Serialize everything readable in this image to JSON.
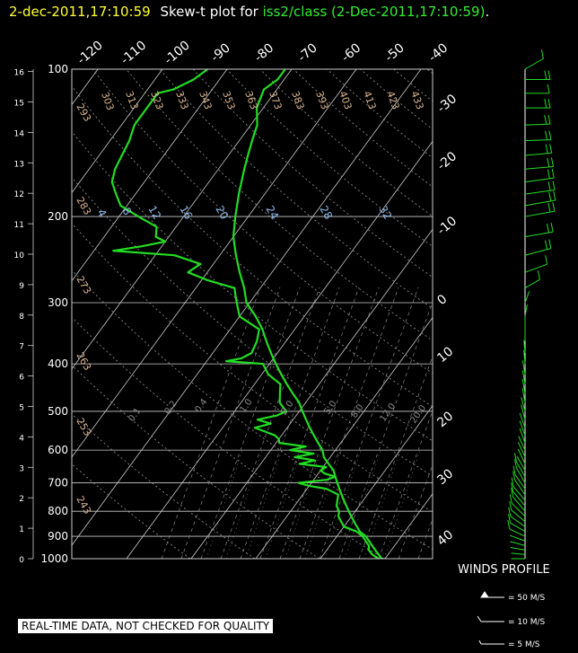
{
  "title": {
    "datetime": "2-dec-2011,17:10:59",
    "mid": "Skew-t plot for",
    "platform": "iss2/class",
    "paren": "(2-Dec-2011,17:10:59)",
    "period": ".",
    "colors": {
      "datetime": "#ffff33",
      "mid": "#ffffff",
      "platform": "#33ee33",
      "paren": "#33ee33"
    }
  },
  "notice": "REAL-TIME DATA, NOT CHECKED FOR QUALITY",
  "wind_profile": {
    "title": "WINDS PROFILE",
    "legend": [
      "= 50 M/S",
      "= 10 M/S",
      "= 5 M/S"
    ]
  },
  "colors": {
    "background": "#000000",
    "trace": "#22dd22",
    "grid": "#cccccc",
    "dry_adiabat_labels": "#d9b38c",
    "mixing_ratio_labels": "#8fb8e8",
    "axis_text": "#ffffff"
  },
  "chart_data": {
    "type": "line",
    "chart_kind": "skew-t log-p",
    "pressure_axis": {
      "label_values": [
        "100",
        "200",
        "300",
        "400",
        "500",
        "600",
        "700",
        "800",
        "900",
        "1000"
      ],
      "pressures": [
        100,
        200,
        300,
        400,
        500,
        600,
        700,
        800,
        900,
        1000
      ]
    },
    "height_axis": {
      "label_values": [
        "16",
        "15",
        "14",
        "13",
        "12",
        "11",
        "10",
        "9",
        "8",
        "7",
        "6",
        "5",
        "4",
        "3",
        "2",
        "1",
        "0"
      ],
      "heights_km": [
        16,
        15,
        14,
        13,
        12,
        11,
        10,
        9,
        8,
        7,
        6,
        5,
        4,
        3,
        2,
        1,
        0
      ]
    },
    "temperature_ticks_top": [
      "-120",
      "-110",
      "-100",
      "-90",
      "-80",
      "-70",
      "-60",
      "-50",
      "-40"
    ],
    "temperature_ticks_right": [
      "-30",
      "-20",
      "-10",
      "0",
      "10",
      "20",
      "30",
      "40"
    ],
    "dry_adiabats": [
      "303",
      "313",
      "323",
      "333",
      "343",
      "353",
      "363",
      "373",
      "383",
      "393",
      "403",
      "413",
      "423",
      "433",
      "293",
      "283",
      "273",
      "263",
      "253",
      "243"
    ],
    "mixing_ratios": [
      "4",
      "8",
      "12",
      "16",
      "20",
      "24",
      "28",
      "32"
    ],
    "moist_adiabat_labels": [
      "0.1",
      "0.2",
      "0.4",
      "1.0",
      "2.0",
      "5.0",
      "8.0",
      "12.0",
      "20.0"
    ],
    "series": [
      {
        "name": "temperature",
        "points": [
          [
            1000,
            -0.5
          ],
          [
            970,
            -2
          ],
          [
            950,
            -3
          ],
          [
            920,
            -4.5
          ],
          [
            900,
            -5.5
          ],
          [
            880,
            -7
          ],
          [
            850,
            -8.5
          ],
          [
            820,
            -10
          ],
          [
            800,
            -11
          ],
          [
            770,
            -12.5
          ],
          [
            740,
            -14
          ],
          [
            720,
            -15
          ],
          [
            700,
            -16
          ],
          [
            680,
            -17
          ],
          [
            660,
            -18
          ],
          [
            640,
            -19.5
          ],
          [
            620,
            -21
          ],
          [
            600,
            -22
          ],
          [
            580,
            -23.5
          ],
          [
            560,
            -25
          ],
          [
            540,
            -26.5
          ],
          [
            520,
            -28
          ],
          [
            500,
            -29.5
          ],
          [
            480,
            -31
          ],
          [
            460,
            -33
          ],
          [
            440,
            -35
          ],
          [
            420,
            -37
          ],
          [
            400,
            -39
          ],
          [
            380,
            -41
          ],
          [
            360,
            -43
          ],
          [
            340,
            -45
          ],
          [
            320,
            -47.5
          ],
          [
            300,
            -50.5
          ],
          [
            280,
            -52.5
          ],
          [
            260,
            -55
          ],
          [
            240,
            -57.5
          ],
          [
            220,
            -60
          ],
          [
            200,
            -62
          ],
          [
            180,
            -64
          ],
          [
            160,
            -66
          ],
          [
            150,
            -67
          ],
          [
            140,
            -68
          ],
          [
            130,
            -69
          ],
          [
            120,
            -71
          ],
          [
            110,
            -72
          ],
          [
            105,
            -71
          ],
          [
            100,
            -71
          ]
        ]
      },
      {
        "name": "dewpoint",
        "points": [
          [
            1000,
            -1
          ],
          [
            980,
            -2.5
          ],
          [
            960,
            -3.5
          ],
          [
            940,
            -4
          ],
          [
            920,
            -5
          ],
          [
            900,
            -6
          ],
          [
            880,
            -7.5
          ],
          [
            860,
            -10
          ],
          [
            840,
            -11
          ],
          [
            820,
            -12
          ],
          [
            800,
            -12.5
          ],
          [
            780,
            -13.5
          ],
          [
            760,
            -14
          ],
          [
            740,
            -14.5
          ],
          [
            720,
            -17
          ],
          [
            710,
            -20
          ],
          [
            700,
            -22
          ],
          [
            690,
            -18
          ],
          [
            680,
            -17
          ],
          [
            670,
            -19
          ],
          [
            660,
            -20
          ],
          [
            650,
            -19.5
          ],
          [
            640,
            -24
          ],
          [
            630,
            -22
          ],
          [
            620,
            -25.5
          ],
          [
            610,
            -23
          ],
          [
            600,
            -27
          ],
          [
            590,
            -25
          ],
          [
            580,
            -29.5
          ],
          [
            570,
            -30
          ],
          [
            560,
            -31
          ],
          [
            550,
            -33
          ],
          [
            540,
            -35
          ],
          [
            530,
            -33
          ],
          [
            520,
            -35.5
          ],
          [
            510,
            -33
          ],
          [
            500,
            -32
          ],
          [
            490,
            -33
          ],
          [
            480,
            -34
          ],
          [
            460,
            -35
          ],
          [
            440,
            -36
          ],
          [
            420,
            -39
          ],
          [
            400,
            -41
          ],
          [
            395,
            -47
          ],
          [
            390,
            -45
          ],
          [
            380,
            -44
          ],
          [
            360,
            -44.5
          ],
          [
            340,
            -45.5
          ],
          [
            320,
            -50
          ],
          [
            300,
            -52
          ],
          [
            290,
            -53
          ],
          [
            280,
            -54
          ],
          [
            270,
            -59
          ],
          [
            260,
            -63
          ],
          [
            250,
            -62
          ],
          [
            240,
            -67
          ],
          [
            235,
            -77
          ],
          [
            230,
            -73
          ],
          [
            225,
            -70
          ],
          [
            220,
            -72
          ],
          [
            210,
            -73
          ],
          [
            200,
            -77
          ],
          [
            190,
            -81
          ],
          [
            180,
            -83
          ],
          [
            170,
            -85
          ],
          [
            160,
            -86
          ],
          [
            150,
            -86.5
          ],
          [
            140,
            -87
          ],
          [
            130,
            -88
          ],
          [
            120,
            -88
          ],
          [
            112,
            -88
          ],
          [
            110,
            -86
          ],
          [
            105,
            -84
          ],
          [
            100,
            -83
          ]
        ]
      }
    ],
    "winds": [
      {
        "p": 1000,
        "spd": 6,
        "dir": 90
      },
      {
        "p": 980,
        "spd": 6,
        "dir": 95
      },
      {
        "p": 960,
        "spd": 7,
        "dir": 100
      },
      {
        "p": 940,
        "spd": 8,
        "dir": 105
      },
      {
        "p": 920,
        "spd": 9,
        "dir": 110
      },
      {
        "p": 900,
        "spd": 10,
        "dir": 115
      },
      {
        "p": 880,
        "spd": 10,
        "dir": 120
      },
      {
        "p": 860,
        "spd": 11,
        "dir": 125
      },
      {
        "p": 840,
        "spd": 11,
        "dir": 130
      },
      {
        "p": 820,
        "spd": 12,
        "dir": 135
      },
      {
        "p": 800,
        "spd": 12,
        "dir": 140
      },
      {
        "p": 780,
        "spd": 12,
        "dir": 140
      },
      {
        "p": 760,
        "spd": 11,
        "dir": 140
      },
      {
        "p": 740,
        "spd": 11,
        "dir": 145
      },
      {
        "p": 720,
        "spd": 10,
        "dir": 145
      },
      {
        "p": 700,
        "spd": 10,
        "dir": 150
      },
      {
        "p": 680,
        "spd": 10,
        "dir": 150
      },
      {
        "p": 660,
        "spd": 9,
        "dir": 150
      },
      {
        "p": 640,
        "spd": 9,
        "dir": 155
      },
      {
        "p": 620,
        "spd": 9,
        "dir": 155
      },
      {
        "p": 600,
        "spd": 8,
        "dir": 155
      },
      {
        "p": 580,
        "spd": 8,
        "dir": 160
      },
      {
        "p": 560,
        "spd": 8,
        "dir": 160
      },
      {
        "p": 540,
        "spd": 8,
        "dir": 160
      },
      {
        "p": 520,
        "spd": 8,
        "dir": 165
      },
      {
        "p": 500,
        "spd": 7,
        "dir": 165
      },
      {
        "p": 480,
        "spd": 7,
        "dir": 170
      },
      {
        "p": 460,
        "spd": 7,
        "dir": 170
      },
      {
        "p": 440,
        "spd": 6,
        "dir": 170
      },
      {
        "p": 420,
        "spd": 6,
        "dir": 170
      },
      {
        "p": 400,
        "spd": 6,
        "dir": 175
      },
      {
        "p": 380,
        "spd": 5,
        "dir": 175
      },
      {
        "p": 360,
        "spd": 5,
        "dir": 180
      },
      {
        "p": 340,
        "spd": 5,
        "dir": 180
      },
      {
        "p": 320,
        "spd": 4,
        "dir": 190
      },
      {
        "p": 300,
        "spd": 4,
        "dir": 200
      },
      {
        "p": 280,
        "spd": 10,
        "dir": 240
      },
      {
        "p": 260,
        "spd": 18,
        "dir": 250
      },
      {
        "p": 240,
        "spd": 22,
        "dir": 255
      },
      {
        "p": 220,
        "spd": 24,
        "dir": 260
      },
      {
        "p": 200,
        "spd": 26,
        "dir": 260
      },
      {
        "p": 190,
        "spd": 27,
        "dir": 260
      },
      {
        "p": 180,
        "spd": 26,
        "dir": 262
      },
      {
        "p": 170,
        "spd": 25,
        "dir": 262
      },
      {
        "p": 160,
        "spd": 24,
        "dir": 265
      },
      {
        "p": 150,
        "spd": 22,
        "dir": 265
      },
      {
        "p": 140,
        "spd": 21,
        "dir": 268
      },
      {
        "p": 130,
        "spd": 20,
        "dir": 268
      },
      {
        "p": 120,
        "spd": 20,
        "dir": 270
      },
      {
        "p": 112,
        "spd": 19,
        "dir": 270
      },
      {
        "p": 105,
        "spd": 20,
        "dir": 270
      },
      {
        "p": 100,
        "spd": 15,
        "dir": 240
      }
    ]
  }
}
